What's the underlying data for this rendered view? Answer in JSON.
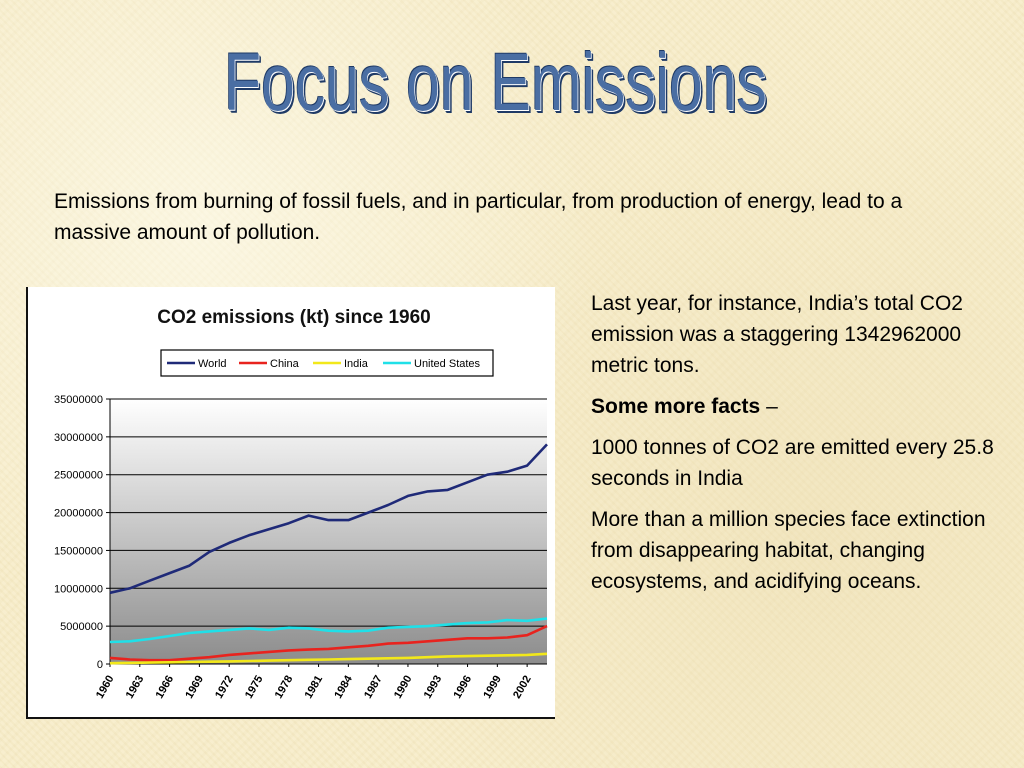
{
  "slide": {
    "title": "Focus on Emissions",
    "intro": "Emissions from burning of fossil fuels, and in particular, from production of energy, lead to a massive amount of pollution.",
    "facts": {
      "p1": "Last year, for instance, India’s total CO2 emission was a staggering 1342962000 metric tons.",
      "heading": "Some more facts",
      "heading_suffix": " –",
      "p2": "1000 tonnes of CO2 are emitted every 25.8 seconds in India",
      "p3": "More than a million species face extinction from disappearing habitat, changing ecosystems, and acidifying oceans."
    }
  },
  "chart_data": {
    "type": "line",
    "title": "CO2 emissions (kt) since 1960",
    "xlabel": "",
    "ylabel": "",
    "ylim": [
      0,
      35000000
    ],
    "yticks": [
      0,
      5000000,
      10000000,
      15000000,
      20000000,
      25000000,
      30000000,
      35000000
    ],
    "xticks": [
      "1960",
      "1963",
      "1966",
      "1969",
      "1972",
      "1975",
      "1978",
      "1981",
      "1984",
      "1987",
      "1990",
      "1993",
      "1996",
      "1999",
      "2002"
    ],
    "x": [
      1960,
      1962,
      1964,
      1966,
      1968,
      1970,
      1972,
      1974,
      1976,
      1978,
      1980,
      1982,
      1984,
      1986,
      1988,
      1990,
      1992,
      1994,
      1996,
      1998,
      2000,
      2002,
      2004
    ],
    "legend_position": "top",
    "grid": true,
    "series": [
      {
        "name": "World",
        "color": "#1f2a78",
        "values": [
          9400000,
          10000000,
          11000000,
          12000000,
          13000000,
          14800000,
          16000000,
          17000000,
          17800000,
          18600000,
          19600000,
          19000000,
          19000000,
          20000000,
          21000000,
          22200000,
          22800000,
          23000000,
          24000000,
          25000000,
          25400000,
          26200000,
          29000000
        ]
      },
      {
        "name": "China",
        "color": "#e8231e",
        "values": [
          800000,
          600000,
          500000,
          500000,
          700000,
          900000,
          1200000,
          1400000,
          1600000,
          1800000,
          1900000,
          2000000,
          2200000,
          2400000,
          2700000,
          2800000,
          3000000,
          3200000,
          3400000,
          3400000,
          3500000,
          3800000,
          5000000
        ]
      },
      {
        "name": "India",
        "color": "#f2e81a",
        "values": [
          100000,
          150000,
          180000,
          220000,
          260000,
          300000,
          350000,
          400000,
          450000,
          500000,
          550000,
          600000,
          650000,
          700000,
          750000,
          800000,
          900000,
          1000000,
          1050000,
          1100000,
          1150000,
          1200000,
          1350000
        ]
      },
      {
        "name": "United States",
        "color": "#1fe0e8",
        "values": [
          2900000,
          3000000,
          3300000,
          3700000,
          4100000,
          4300000,
          4500000,
          4700000,
          4500000,
          4800000,
          4700000,
          4400000,
          4300000,
          4400000,
          4800000,
          4900000,
          5000000,
          5200000,
          5400000,
          5500000,
          5800000,
          5700000,
          6000000
        ]
      }
    ]
  }
}
